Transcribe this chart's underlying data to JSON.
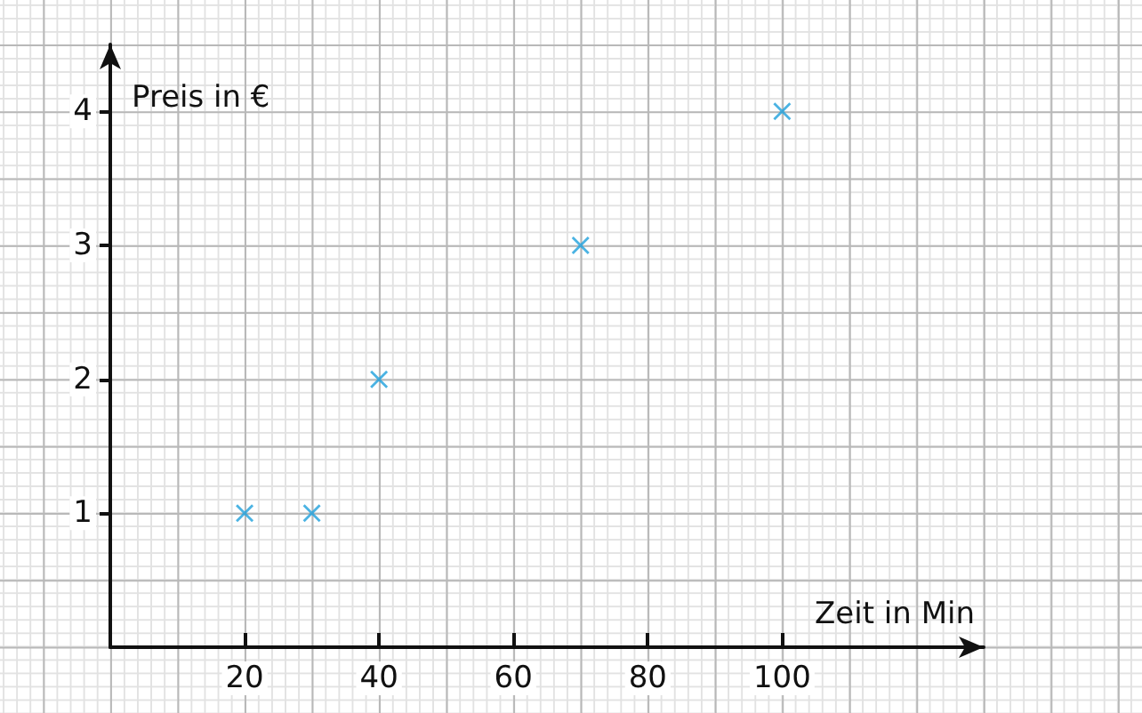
{
  "chart_data": {
    "type": "scatter",
    "xlabel": "Zeit in Min",
    "ylabel": "Preis in €",
    "x": [
      20,
      30,
      40,
      70,
      100
    ],
    "values": [
      1,
      1,
      2,
      3,
      4
    ],
    "color": "#1ea0dc",
    "marker": "cross",
    "xlim": [
      0,
      130
    ],
    "xticks": [
      20,
      40,
      60,
      80,
      100
    ],
    "ylim": [
      0,
      4.5
    ],
    "yticks": [
      1,
      2,
      3,
      4
    ]
  }
}
